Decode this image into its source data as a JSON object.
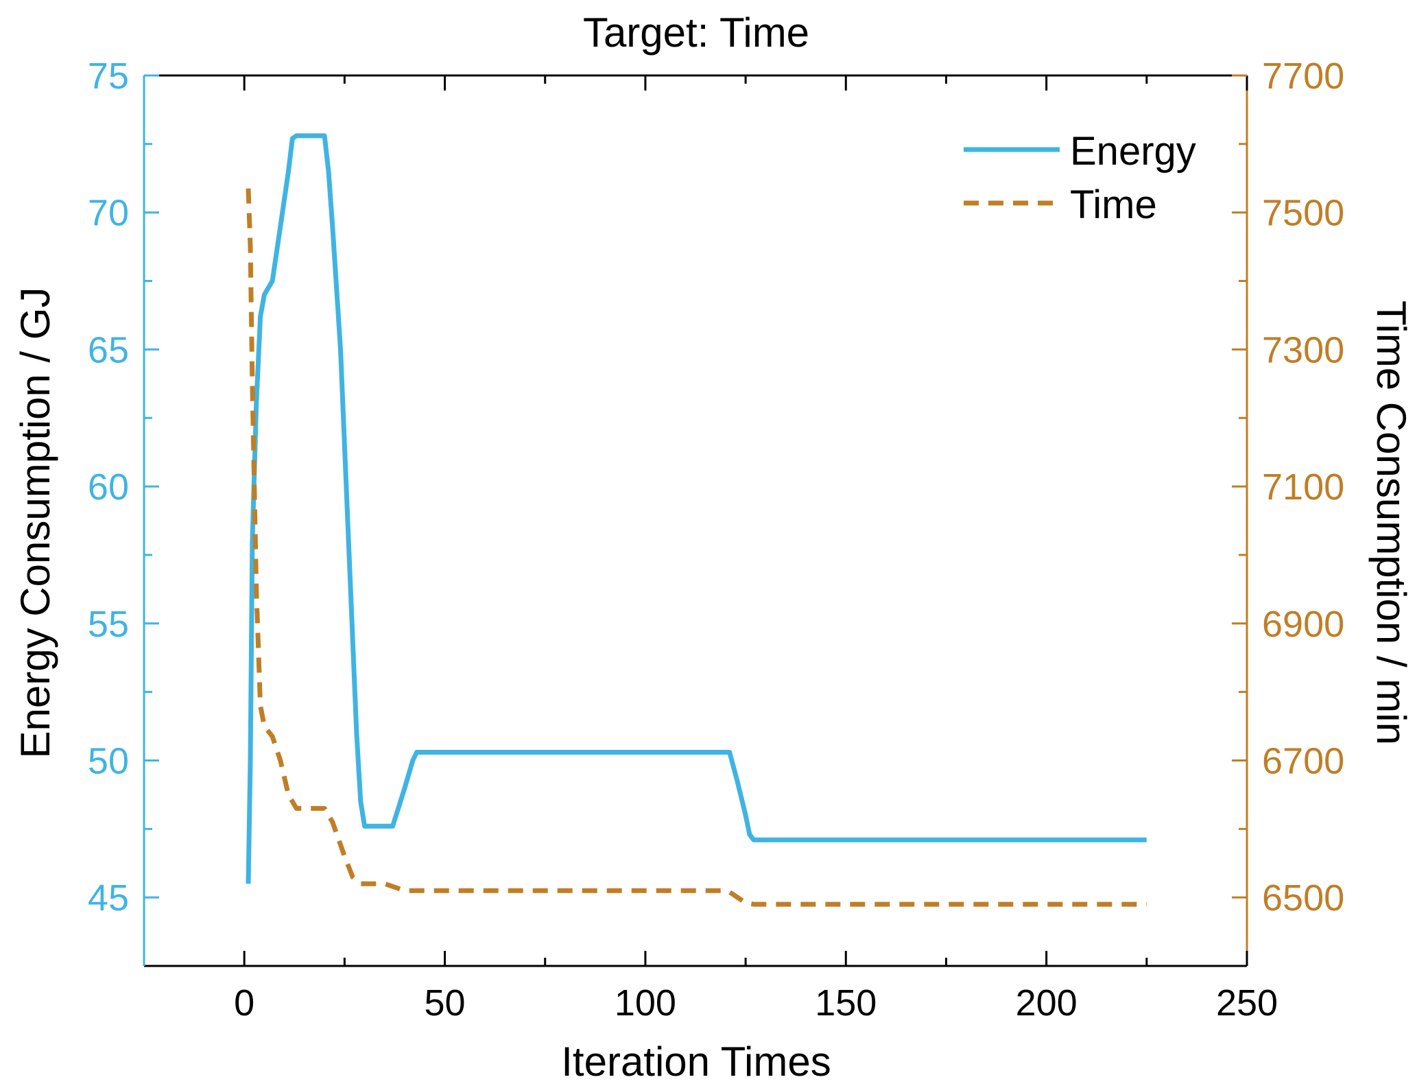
{
  "chart_data": {
    "type": "line",
    "title": "Target: Time",
    "xlabel": "Iteration Times",
    "ylabel_left": "Energy Consumption / GJ",
    "ylabel_right": "Time Consumption / min",
    "xlim": [
      -25,
      250
    ],
    "ylim_left": [
      42.5,
      75
    ],
    "ylim_right": [
      6400,
      7700
    ],
    "x_ticks": [
      0,
      50,
      100,
      150,
      200,
      250
    ],
    "y_left_ticks": [
      45,
      50,
      55,
      60,
      65,
      70,
      75
    ],
    "y_right_ticks": [
      6500,
      6700,
      6900,
      7100,
      7300,
      7500,
      7700
    ],
    "grid": false,
    "legend_position": "top-right",
    "colors": {
      "energy": "#3fb4e3",
      "time": "#c07e25"
    },
    "series": [
      {
        "name": "Energy",
        "axis": "left",
        "style": "solid",
        "x": [
          1,
          1.5,
          2,
          3,
          4,
          5,
          7,
          8,
          10,
          11,
          12,
          13,
          15,
          17,
          19,
          20,
          21,
          22,
          24,
          26,
          28,
          29,
          30,
          32,
          35,
          37,
          40,
          42,
          43,
          45,
          50,
          60,
          80,
          100,
          110,
          120,
          121,
          123,
          125,
          126,
          127,
          130,
          150,
          175,
          200,
          225
        ],
        "y": [
          45.5,
          50,
          58,
          63,
          66.2,
          67,
          67.5,
          68.5,
          70.5,
          71.5,
          72.7,
          72.8,
          72.8,
          72.8,
          72.8,
          72.8,
          71.5,
          69.5,
          65,
          58,
          51,
          48.5,
          47.6,
          47.6,
          47.6,
          47.6,
          49,
          50,
          50.3,
          50.3,
          50.3,
          50.3,
          50.3,
          50.3,
          50.3,
          50.3,
          50.3,
          49.2,
          48,
          47.3,
          47.1,
          47.1,
          47.1,
          47.1,
          47.1,
          47.1
        ]
      },
      {
        "name": "Time",
        "axis": "right",
        "style": "dashed",
        "x": [
          1,
          1.5,
          2,
          3,
          4,
          5,
          7,
          9,
          11,
          13,
          15,
          18,
          20,
          22,
          25,
          27,
          29,
          31,
          35,
          40,
          45,
          50,
          60,
          80,
          100,
          110,
          120,
          121,
          123,
          125,
          127,
          130,
          150,
          175,
          200,
          225
        ],
        "y": [
          7535,
          7450,
          7250,
          6950,
          6780,
          6750,
          6735,
          6700,
          6650,
          6630,
          6630,
          6630,
          6630,
          6610,
          6560,
          6530,
          6520,
          6520,
          6520,
          6510,
          6510,
          6510,
          6510,
          6510,
          6510,
          6510,
          6510,
          6508,
          6500,
          6492,
          6490,
          6490,
          6490,
          6490,
          6490,
          6490
        ]
      }
    ]
  }
}
